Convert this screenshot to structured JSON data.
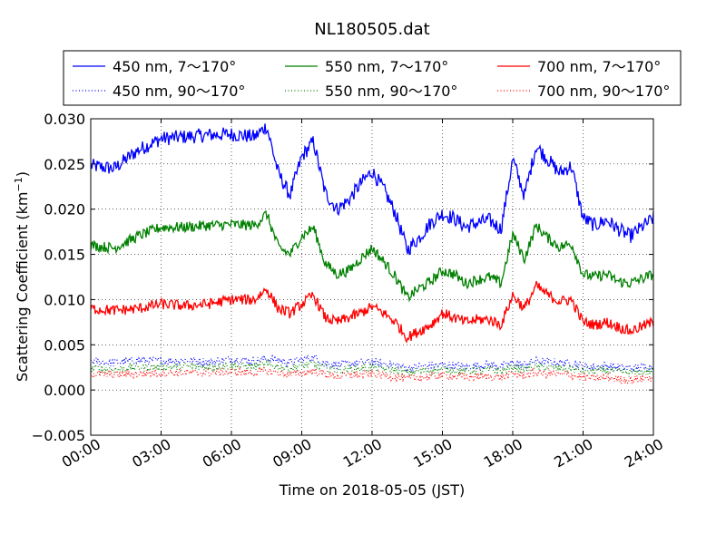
{
  "chart_data": {
    "type": "line",
    "title": "NL180505.dat",
    "xlabel": "Time on 2018-05-05 (JST)",
    "ylabel": "Scattering Coefficient (km",
    "ylabel_sup": "−1",
    "ylabel_close": ")",
    "xlim": [
      "00:00",
      "24:00"
    ],
    "ylim": [
      -0.005,
      0.03
    ],
    "grid": true,
    "legend_position": "top (above plot)",
    "x_ticks": [
      "00:00",
      "03:00",
      "06:00",
      "09:00",
      "12:00",
      "15:00",
      "18:00",
      "21:00",
      "24:00"
    ],
    "y_ticks": [
      "−0.005",
      "0.000",
      "0.005",
      "0.010",
      "0.015",
      "0.020",
      "0.025",
      "0.030"
    ],
    "x_hours": [
      0,
      1,
      2,
      3,
      4,
      5,
      6,
      7,
      7.5,
      8,
      8.5,
      9,
      9.5,
      10,
      10.5,
      11,
      11.5,
      12,
      12.5,
      13,
      13.5,
      14,
      14.5,
      15,
      15.5,
      16,
      16.5,
      17,
      17.5,
      18,
      18.5,
      19,
      19.5,
      20,
      20.5,
      21,
      21.5,
      22,
      22.5,
      23,
      24
    ],
    "series": [
      {
        "name": "450 nm, 7～170°",
        "color": "#0000ff",
        "style": "solid",
        "values": [
          0.0248,
          0.0245,
          0.0265,
          0.0278,
          0.028,
          0.0282,
          0.0283,
          0.028,
          0.0292,
          0.024,
          0.0215,
          0.0258,
          0.0275,
          0.0218,
          0.02,
          0.021,
          0.0228,
          0.0242,
          0.0222,
          0.0195,
          0.0155,
          0.0168,
          0.0185,
          0.0195,
          0.019,
          0.018,
          0.0185,
          0.0188,
          0.0178,
          0.0255,
          0.0215,
          0.027,
          0.0255,
          0.024,
          0.0248,
          0.019,
          0.0182,
          0.0188,
          0.0178,
          0.017,
          0.019
        ]
      },
      {
        "name": "450 nm, 90～170°",
        "color": "#0000ff",
        "style": "dotted",
        "values": [
          0.0032,
          0.003,
          0.0033,
          0.0032,
          0.0033,
          0.0031,
          0.0034,
          0.0032,
          0.0035,
          0.0033,
          0.003,
          0.0034,
          0.0036,
          0.003,
          0.0028,
          0.0029,
          0.003,
          0.0031,
          0.0029,
          0.0028,
          0.0024,
          0.0026,
          0.0027,
          0.0028,
          0.0027,
          0.0026,
          0.0027,
          0.0028,
          0.0026,
          0.003,
          0.0028,
          0.0032,
          0.0031,
          0.003,
          0.003,
          0.0026,
          0.0026,
          0.0027,
          0.0025,
          0.0024,
          0.0026
        ]
      },
      {
        "name": "550 nm, 7～170°",
        "color": "#008000",
        "style": "solid",
        "values": [
          0.016,
          0.0157,
          0.017,
          0.018,
          0.018,
          0.0182,
          0.0183,
          0.0182,
          0.0195,
          0.0158,
          0.015,
          0.017,
          0.018,
          0.014,
          0.0128,
          0.0132,
          0.0145,
          0.0157,
          0.0142,
          0.0125,
          0.0102,
          0.0112,
          0.012,
          0.0132,
          0.0128,
          0.0118,
          0.0122,
          0.0125,
          0.0118,
          0.0172,
          0.0145,
          0.0182,
          0.0168,
          0.0158,
          0.0162,
          0.0128,
          0.0125,
          0.0128,
          0.012,
          0.0118,
          0.0128
        ]
      },
      {
        "name": "550 nm, 90～170°",
        "color": "#008000",
        "style": "dotted",
        "values": [
          0.0024,
          0.0023,
          0.0025,
          0.0025,
          0.0026,
          0.0025,
          0.0027,
          0.0026,
          0.0028,
          0.0026,
          0.0024,
          0.0027,
          0.0029,
          0.0024,
          0.0022,
          0.0023,
          0.0024,
          0.0025,
          0.0023,
          0.0022,
          0.0019,
          0.0021,
          0.0022,
          0.0023,
          0.0022,
          0.0021,
          0.0022,
          0.0022,
          0.0021,
          0.0025,
          0.0023,
          0.0026,
          0.0025,
          0.0024,
          0.0024,
          0.0021,
          0.0021,
          0.0022,
          0.002,
          0.0019,
          0.0021
        ]
      },
      {
        "name": "700 nm, 7～170°",
        "color": "#ff0000",
        "style": "solid",
        "values": [
          0.009,
          0.0088,
          0.009,
          0.0095,
          0.0093,
          0.0095,
          0.01,
          0.01,
          0.0112,
          0.009,
          0.0085,
          0.0095,
          0.0105,
          0.008,
          0.0075,
          0.008,
          0.0085,
          0.0092,
          0.0085,
          0.0075,
          0.0058,
          0.0065,
          0.0072,
          0.0085,
          0.008,
          0.0075,
          0.0078,
          0.0078,
          0.0072,
          0.0105,
          0.009,
          0.0115,
          0.0105,
          0.0098,
          0.01,
          0.0075,
          0.0072,
          0.0075,
          0.007,
          0.0065,
          0.0075
        ]
      },
      {
        "name": "700 nm, 90～170°",
        "color": "#ff0000",
        "style": "dotted",
        "values": [
          0.0018,
          0.0017,
          0.0018,
          0.0019,
          0.0019,
          0.0019,
          0.002,
          0.0019,
          0.0021,
          0.0019,
          0.0017,
          0.0019,
          0.0021,
          0.0017,
          0.0015,
          0.0016,
          0.0017,
          0.0018,
          0.0016,
          0.0015,
          0.0012,
          0.0014,
          0.0015,
          0.0016,
          0.0015,
          0.0014,
          0.0015,
          0.0015,
          0.0014,
          0.0018,
          0.0016,
          0.0019,
          0.0018,
          0.0017,
          0.0017,
          0.0014,
          0.0013,
          0.0014,
          0.0012,
          0.0011,
          0.0014
        ]
      }
    ]
  }
}
